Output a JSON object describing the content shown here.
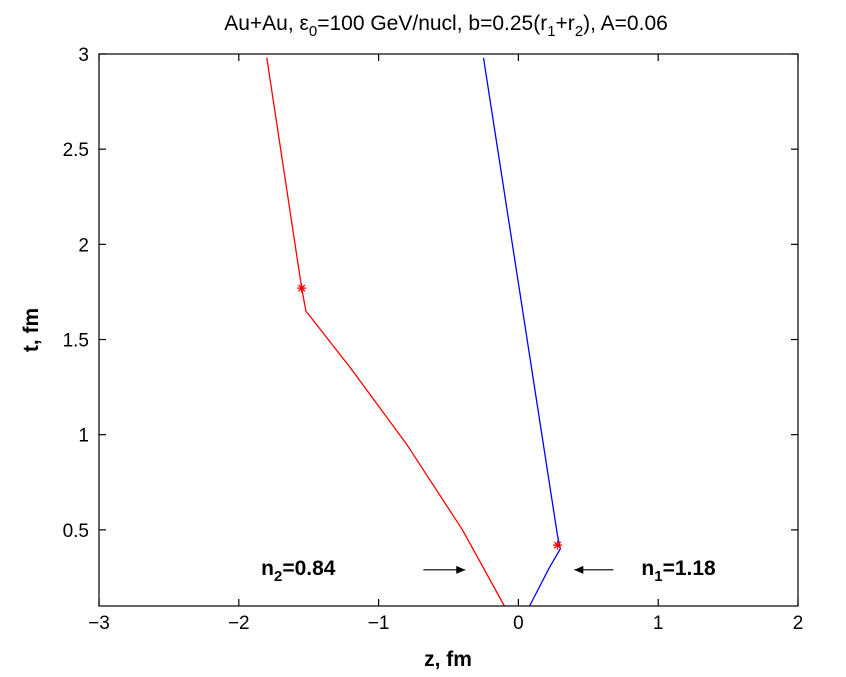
{
  "chart_data": {
    "type": "line",
    "title": {
      "main": "Au+Au, ε",
      "sub1": "0",
      "mid1": "=100 GeV/nucl, b=0.25(r",
      "sub2": "1",
      "mid2": "+r",
      "sub3": "2",
      "tail": "), A=0.06"
    },
    "xlabel": "z, fm",
    "ylabel": "t, fm",
    "xlim": [
      -3,
      2
    ],
    "ylim": [
      0.1,
      3
    ],
    "xticks": [
      {
        "value": -3,
        "label": "−3"
      },
      {
        "value": -2,
        "label": "−2"
      },
      {
        "value": -1,
        "label": "−1"
      },
      {
        "value": 0,
        "label": "0"
      },
      {
        "value": 1,
        "label": "1"
      },
      {
        "value": 2,
        "label": "2"
      }
    ],
    "yticks": [
      {
        "value": 0.5,
        "label": "0.5"
      },
      {
        "value": 1,
        "label": "1"
      },
      {
        "value": 1.5,
        "label": "1.5"
      },
      {
        "value": 2,
        "label": "2"
      },
      {
        "value": 2.5,
        "label": "2.5"
      },
      {
        "value": 3,
        "label": "3"
      }
    ],
    "grid": false,
    "series": [
      {
        "color": "#ff0000",
        "x": [
          -0.1,
          -0.4,
          -0.8,
          -1.2,
          -1.52,
          -1.55,
          -1.8
        ],
        "y": [
          0.1,
          0.5,
          0.95,
          1.35,
          1.65,
          1.77,
          2.98
        ]
      },
      {
        "color": "#0000ff",
        "x": [
          0.08,
          0.22,
          0.3,
          0.28,
          -0.25
        ],
        "y": [
          0.1,
          0.3,
          0.4,
          0.47,
          2.98
        ]
      }
    ],
    "markers": [
      {
        "x": -1.55,
        "y": 1.77,
        "color": "#ff0000",
        "symbol": "*"
      },
      {
        "x": 0.28,
        "y": 0.42,
        "color": "#ff0000",
        "symbol": "*"
      }
    ],
    "annotations": [
      {
        "name": "n2",
        "base": "n",
        "sub": "2",
        "rest": "=0.84",
        "x": -1.84,
        "y": 0.3,
        "arrow_from": [
          -0.68,
          0.29
        ],
        "arrow_to": [
          -0.38,
          0.29
        ]
      },
      {
        "name": "n1",
        "base": "n",
        "sub": "1",
        "rest": "=1.18",
        "x": 0.88,
        "y": 0.3,
        "arrow_from": [
          0.68,
          0.29
        ],
        "arrow_to": [
          0.4,
          0.29
        ]
      }
    ]
  }
}
